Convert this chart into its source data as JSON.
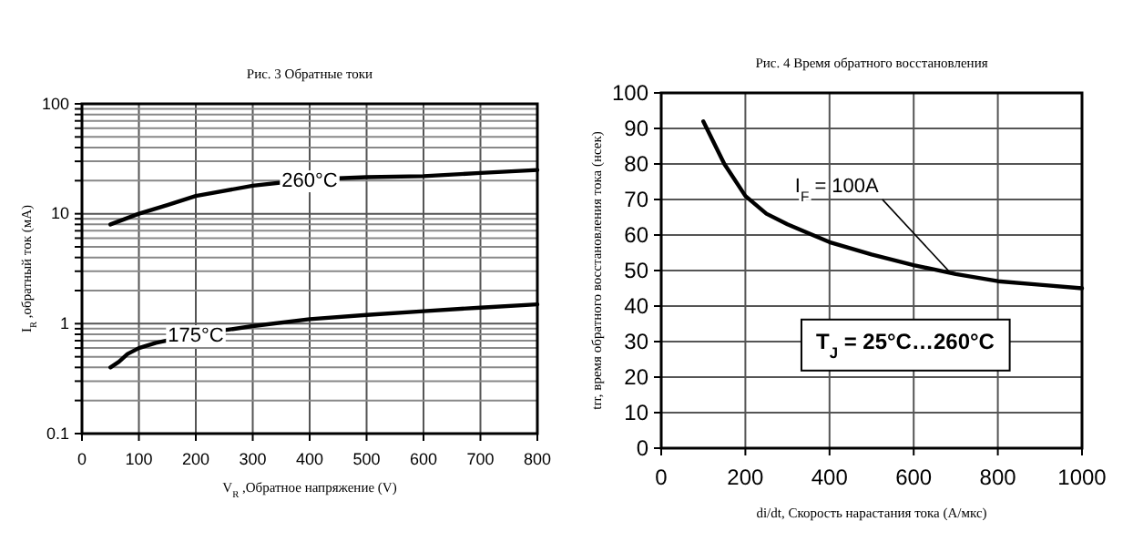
{
  "chart_data": [
    {
      "type": "line",
      "title": "Рис. 3 Обратные токи",
      "xlabel": "V$_{R}$ ,Обратное напряжение (V)",
      "ylabel": "I$_{R}$ ,обратный ток (мА)",
      "log": "y",
      "grid": true,
      "legend": false,
      "xlim": [
        0,
        800
      ],
      "xticks": [
        0,
        100,
        200,
        300,
        400,
        500,
        600,
        700,
        800
      ],
      "ylim": [
        0.1,
        100
      ],
      "yticks": [
        0.1,
        {
          "value": 0.2,
          "label": null
        },
        {
          "value": 0.3,
          "label": null
        },
        {
          "value": 0.4,
          "label": null
        },
        {
          "value": 0.5,
          "label": null
        },
        {
          "value": 0.6,
          "label": null
        },
        {
          "value": 0.7,
          "label": null
        },
        {
          "value": 0.8,
          "label": null
        },
        {
          "value": 0.9,
          "label": null
        },
        1,
        {
          "value": 2,
          "label": null
        },
        {
          "value": 3,
          "label": null
        },
        {
          "value": 4,
          "label": null
        },
        {
          "value": 5,
          "label": null
        },
        {
          "value": 6,
          "label": null
        },
        {
          "value": 7,
          "label": null
        },
        {
          "value": 8,
          "label": null
        },
        {
          "value": 9,
          "label": null
        },
        10,
        {
          "value": 20,
          "label": null
        },
        {
          "value": 30,
          "label": null
        },
        {
          "value": 40,
          "label": null
        },
        {
          "value": 50,
          "label": null
        },
        {
          "value": 60,
          "label": null
        },
        {
          "value": 70,
          "label": null
        },
        {
          "value": 80,
          "label": null
        },
        {
          "value": 90,
          "label": null
        },
        100
      ],
      "series": [
        {
          "name": "260°C",
          "color": "#000000",
          "x": [
            50,
            100,
            150,
            200,
            300,
            400,
            500,
            600,
            700,
            800
          ],
          "values": [
            8,
            10,
            12,
            14.5,
            18,
            20.5,
            21.5,
            22,
            23.5,
            25
          ]
        },
        {
          "name": "175°C",
          "color": "#000000",
          "x": [
            50,
            65,
            80,
            100,
            130,
            200,
            300,
            400,
            500,
            600,
            700,
            800
          ],
          "values": [
            0.4,
            0.45,
            0.53,
            0.6,
            0.67,
            0.8,
            0.95,
            1.1,
            1.2,
            1.3,
            1.4,
            1.5
          ]
        }
      ]
    },
    {
      "type": "line",
      "title": "Рис. 4 Время обратного восстановления",
      "xlabel": "di/dt, Скорость нарастания тока (А/мкс)",
      "ylabel": "trr, время обратного восстановления тока (нсек)",
      "grid": true,
      "legend": false,
      "xlim": [
        0,
        1000
      ],
      "xticks": [
        0,
        200,
        400,
        600,
        800,
        1000
      ],
      "ylim": [
        0,
        100
      ],
      "yticks": [
        0,
        10,
        20,
        30,
        40,
        50,
        60,
        70,
        80,
        90,
        100
      ],
      "annotations": [
        {
          "text": "I$_{F}$ = 100A",
          "x": 690,
          "y": 49
        },
        "T$_{J}$ = 25°C…260°C"
      ],
      "series": [
        {
          "color": "#000000",
          "x": [
            100,
            150,
            200,
            250,
            300,
            400,
            500,
            600,
            700,
            800,
            900,
            1000
          ],
          "values": [
            92,
            80,
            71,
            66,
            63,
            58,
            54.5,
            51.5,
            49,
            47,
            46,
            45
          ]
        }
      ]
    }
  ]
}
